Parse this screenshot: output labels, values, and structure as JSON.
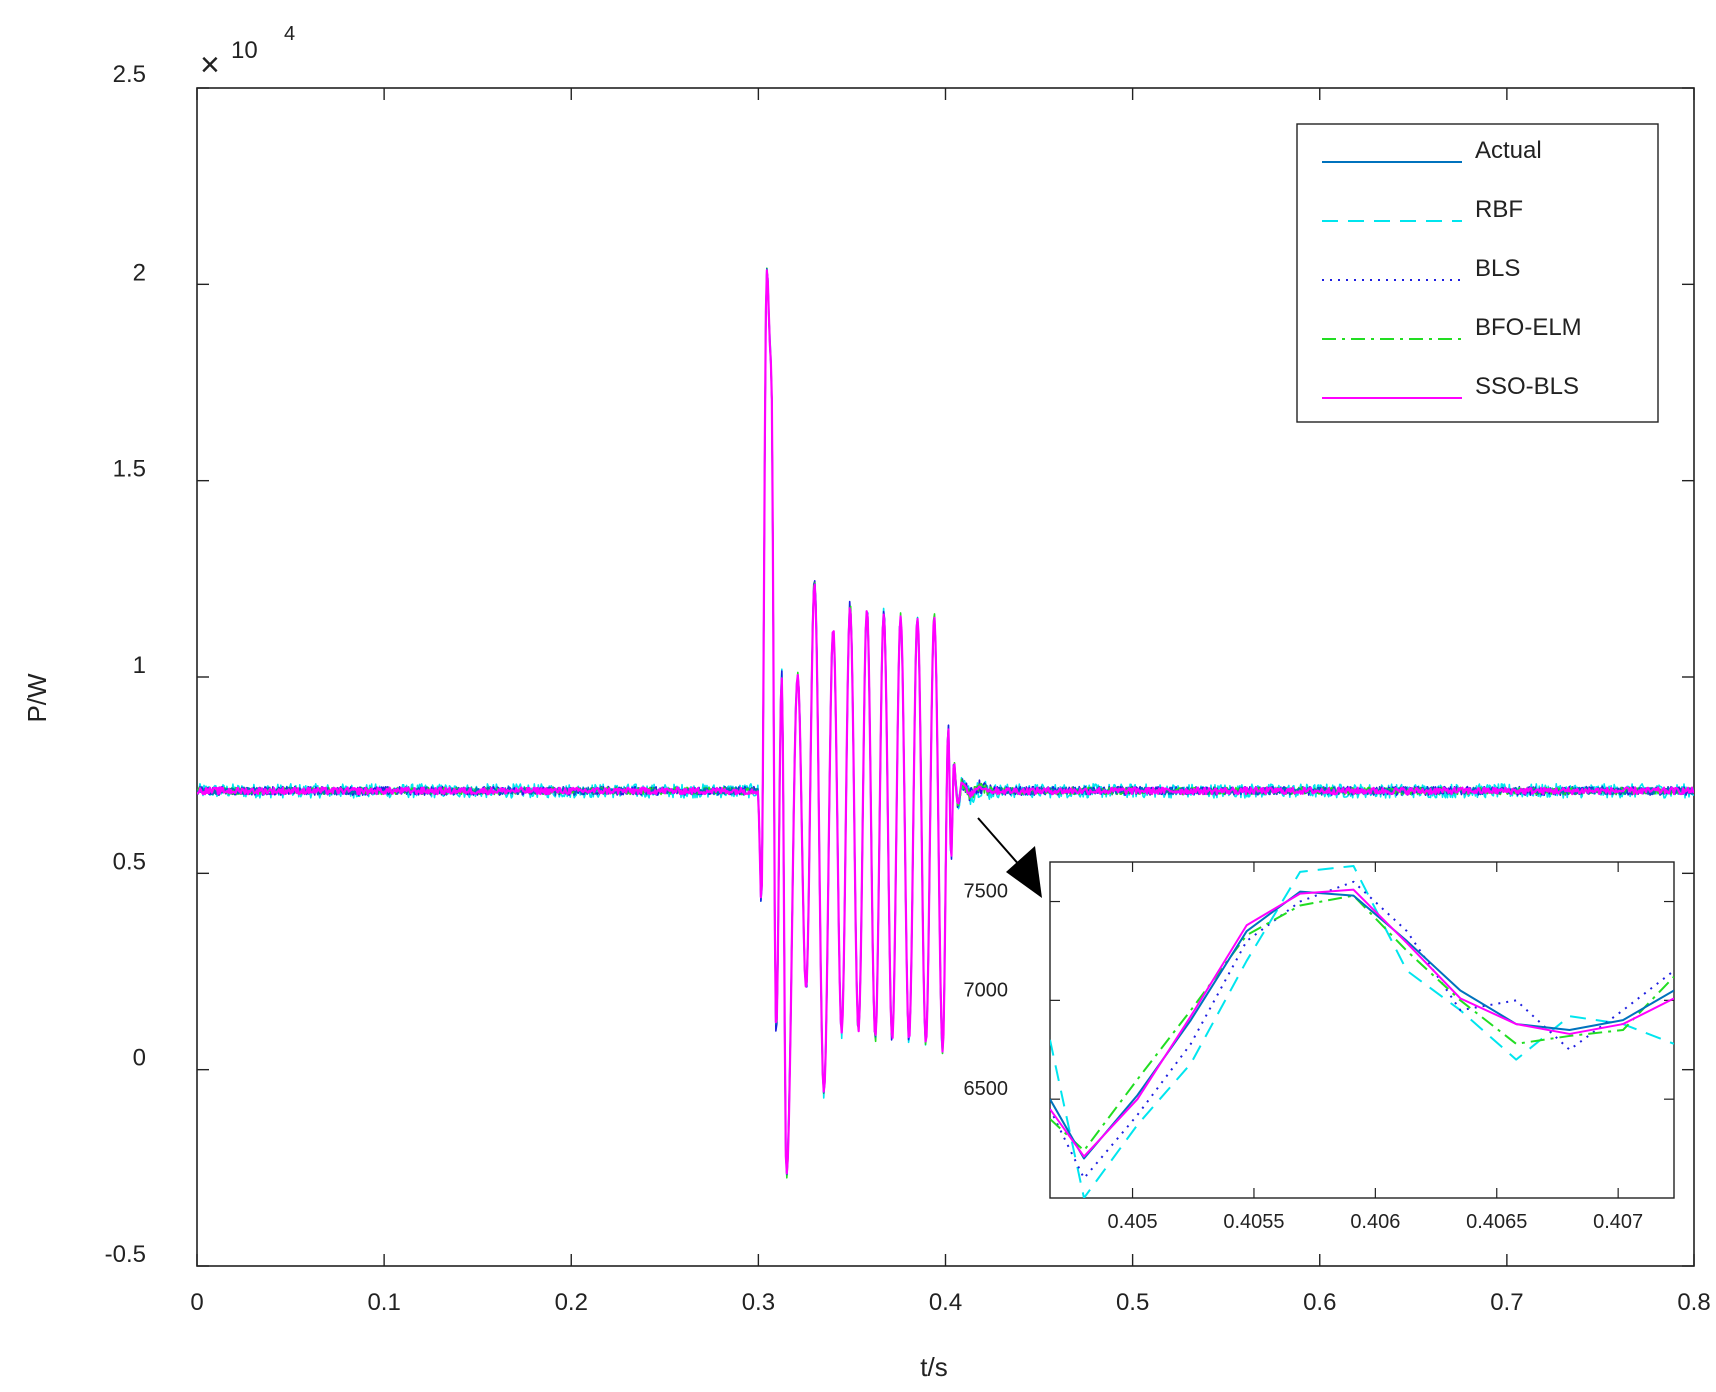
{
  "chart_data": [
    {
      "type": "line",
      "xlabel": "t/s",
      "ylabel": "P/W",
      "y_multiplier": "10",
      "y_multiplier_exp": "4",
      "xlim": [
        0,
        0.8
      ],
      "ylim": [
        -0.5,
        2.5
      ],
      "y_unit_scale": 10000,
      "x_ticks": [
        "0",
        "0.1",
        "0.2",
        "0.3",
        "0.4",
        "0.5",
        "0.6",
        "0.7",
        "0.8"
      ],
      "y_ticks": [
        "-0.5",
        "0",
        "0.5",
        "1",
        "1.5",
        "2",
        "2.5"
      ],
      "x_tick_values": [
        0,
        0.1,
        0.2,
        0.3,
        0.4,
        0.5,
        0.6,
        0.7,
        0.8
      ],
      "y_tick_values": [
        -0.5,
        0,
        0.5,
        1,
        1.5,
        2,
        2.5
      ],
      "legend_position": "top-right",
      "series": [
        {
          "name": "Actual",
          "color": "#0072BD",
          "style": "solid"
        },
        {
          "name": "RBF",
          "color": "#00E5EE",
          "style": "dashed"
        },
        {
          "name": "BLS",
          "color": "#1F1FE0",
          "style": "dotted"
        },
        {
          "name": "BFO-ELM",
          "color": "#22DD22",
          "style": "dashdot"
        },
        {
          "name": "SSO-BLS",
          "color": "#FF00FF",
          "style": "solid"
        }
      ],
      "baseline_power": 7100,
      "disturbance_window": [
        0.3,
        0.405
      ],
      "peak_power": 20400,
      "trough_power": -2700,
      "oscillation_peaks": [
        {
          "t": 0.3015,
          "p": 4100
        },
        {
          "t": 0.3045,
          "p": 20400
        },
        {
          "t": 0.3068,
          "p": 18000
        },
        {
          "t": 0.3095,
          "p": 1000
        },
        {
          "t": 0.3125,
          "p": 10000
        },
        {
          "t": 0.315,
          "p": -2700
        },
        {
          "t": 0.321,
          "p": 10000
        },
        {
          "t": 0.3255,
          "p": 2100
        },
        {
          "t": 0.33,
          "p": 12400
        },
        {
          "t": 0.335,
          "p": -600
        },
        {
          "t": 0.34,
          "p": 11200
        },
        {
          "t": 0.3445,
          "p": 1000
        },
        {
          "t": 0.349,
          "p": 11800
        },
        {
          "t": 0.3535,
          "p": 1000
        },
        {
          "t": 0.358,
          "p": 11700
        },
        {
          "t": 0.3625,
          "p": 800
        },
        {
          "t": 0.367,
          "p": 11600
        },
        {
          "t": 0.3715,
          "p": 800
        },
        {
          "t": 0.376,
          "p": 11500
        },
        {
          "t": 0.3805,
          "p": 800
        },
        {
          "t": 0.385,
          "p": 11500
        },
        {
          "t": 0.3895,
          "p": 700
        },
        {
          "t": 0.394,
          "p": 11500
        },
        {
          "t": 0.3985,
          "p": 500
        },
        {
          "t": 0.4015,
          "p": 8700
        },
        {
          "t": 0.403,
          "p": 5400
        },
        {
          "t": 0.4045,
          "p": 7800
        },
        {
          "t": 0.4065,
          "p": 6800
        },
        {
          "t": 0.409,
          "p": 7300
        },
        {
          "t": 0.413,
          "p": 7000
        },
        {
          "t": 0.418,
          "p": 7200
        },
        {
          "t": 0.425,
          "p": 7100
        }
      ]
    },
    {
      "type": "line",
      "title": "",
      "inset": true,
      "xlim": [
        0.40466,
        0.40723
      ],
      "ylim": [
        6000,
        7700
      ],
      "x_ticks": [
        "0.405",
        "0.4055",
        "0.406",
        "0.4065",
        "0.407"
      ],
      "x_tick_values": [
        0.405,
        0.4055,
        0.406,
        0.4065,
        0.407
      ],
      "y_ticks": [
        "6500",
        "7000",
        "7500"
      ],
      "y_tick_values": [
        6500,
        7000,
        7500
      ],
      "x": [
        0.40466,
        0.4048,
        0.40502,
        0.40524,
        0.40547,
        0.40569,
        0.40591,
        0.40613,
        0.40635,
        0.40658,
        0.4068,
        0.40702,
        0.40723
      ],
      "series": [
        {
          "name": "Actual",
          "values": [
            6500,
            6200,
            6520,
            6900,
            7350,
            7550,
            7530,
            7300,
            7050,
            6880,
            6850,
            6900,
            7050
          ]
        },
        {
          "name": "RBF",
          "values": [
            6800,
            6000,
            6370,
            6680,
            7200,
            7650,
            7680,
            7150,
            6950,
            6700,
            6920,
            6880,
            6780
          ]
        },
        {
          "name": "BLS",
          "values": [
            6450,
            6100,
            6420,
            6780,
            7300,
            7500,
            7600,
            7350,
            6950,
            7000,
            6750,
            6950,
            7150
          ]
        },
        {
          "name": "BFO-ELM",
          "values": [
            6400,
            6240,
            6600,
            6950,
            7330,
            7480,
            7530,
            7250,
            7000,
            6780,
            6820,
            6850,
            7120
          ]
        },
        {
          "name": "SSO-BLS",
          "values": [
            6450,
            6210,
            6500,
            6920,
            7380,
            7540,
            7560,
            7290,
            7010,
            6880,
            6830,
            6880,
            7010
          ]
        }
      ]
    }
  ]
}
